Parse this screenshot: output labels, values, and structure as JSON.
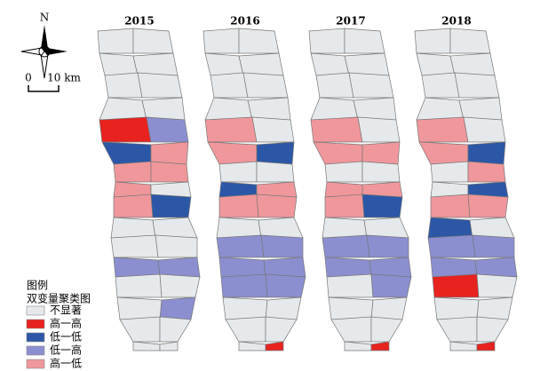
{
  "north": "N",
  "scale": {
    "start": "0",
    "end": "10 km"
  },
  "panels": [
    {
      "year": "2015"
    },
    {
      "year": "2016"
    },
    {
      "year": "2017"
    },
    {
      "year": "2018"
    }
  ],
  "legend": {
    "title": "图例",
    "subtitle": "双变量聚类图",
    "items": [
      {
        "label": "不显著",
        "color": "#e6e9eb"
      },
      {
        "label": "高一高",
        "color": "#e8221f"
      },
      {
        "label": "低一低",
        "color": "#2b57a6"
      },
      {
        "label": "低一高",
        "color": "#8b8fd0"
      },
      {
        "label": "高一低",
        "color": "#f0979b"
      }
    ]
  }
}
